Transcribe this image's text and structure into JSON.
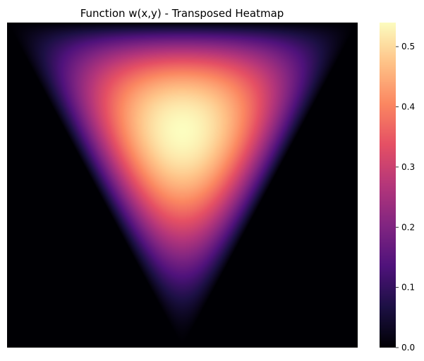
{
  "chart_data": {
    "type": "heatmap",
    "title": "Function w(x,y) - Transposed Heatmap",
    "colormap": "magma",
    "colorbar": {
      "min": 0.0,
      "max": 0.54,
      "ticks": [
        0.0,
        0.1,
        0.2,
        0.3,
        0.4,
        0.5
      ],
      "tick_labels": [
        "0.0",
        "0.1",
        "0.2",
        "0.3",
        "0.4",
        "0.5"
      ]
    },
    "shape": "inverted-triangle",
    "triangle_vertices_unit": [
      [
        0.0,
        0.0
      ],
      [
        1.0,
        0.0
      ],
      [
        0.5,
        1.0
      ]
    ],
    "peak_value": 0.54,
    "x_axis_visible": false,
    "y_axis_visible": false,
    "grid": false
  }
}
